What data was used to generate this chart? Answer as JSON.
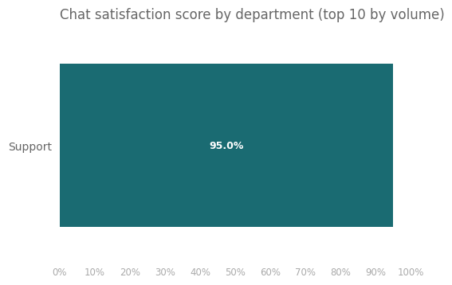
{
  "title": "Chat satisfaction score by department (top 10 by volume)",
  "categories": [
    "Support"
  ],
  "values": [
    0.95
  ],
  "bar_color": "#1a6b72",
  "label_color": "#ffffff",
  "label_text": "95.0%",
  "label_fontsize": 9,
  "label_fontweight": "bold",
  "title_fontsize": 12,
  "title_color": "#666666",
  "tick_color": "#aaaaaa",
  "tick_fontsize": 8.5,
  "background_color": "#ffffff",
  "xlim": [
    0,
    1.0
  ],
  "xticks": [
    0.0,
    0.1,
    0.2,
    0.3,
    0.4,
    0.5,
    0.6,
    0.7,
    0.8,
    0.9,
    1.0
  ],
  "xtick_labels": [
    "0%",
    "10%",
    "20%",
    "30%",
    "40%",
    "50%",
    "60%",
    "70%",
    "80%",
    "90%",
    "100%"
  ],
  "ylabel_color": "#666666",
  "ylabel_fontsize": 10
}
